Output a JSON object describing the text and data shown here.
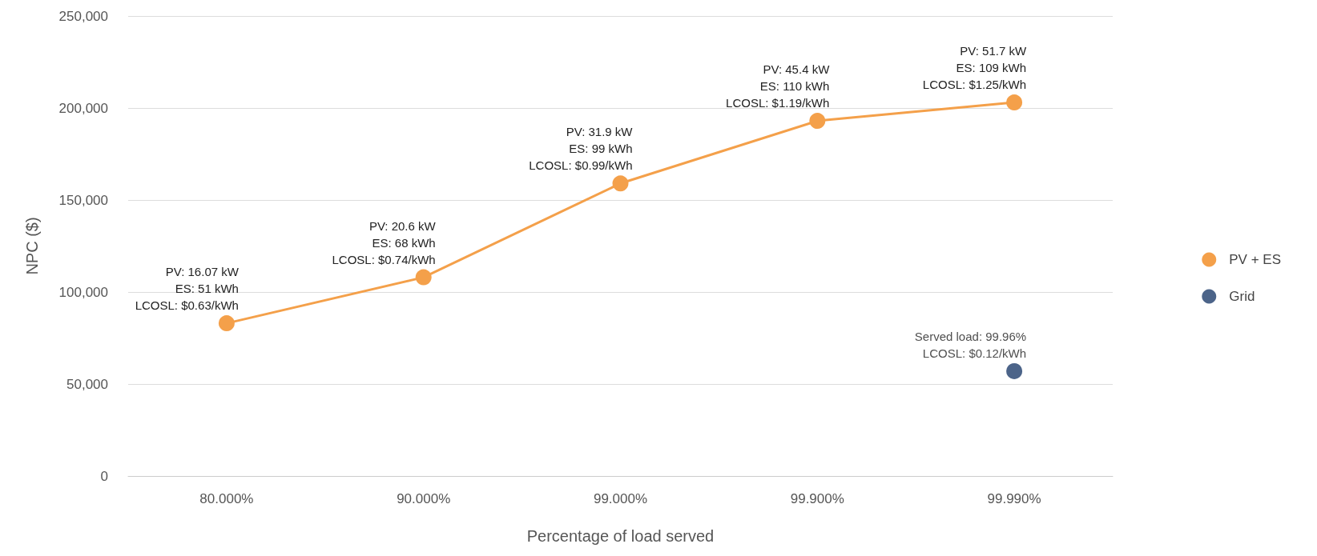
{
  "chart_data": {
    "type": "line",
    "xlabel": "Percentage of load served",
    "ylabel": "NPC ($)",
    "categories": [
      "80.000%",
      "90.000%",
      "99.000%",
      "99.900%",
      "99.990%"
    ],
    "series": [
      {
        "name": "PV + ES",
        "color": "#f4a04a",
        "values": [
          83000,
          108000,
          159000,
          193000,
          203000
        ]
      },
      {
        "name": "Grid",
        "type": "scatter",
        "color": "#1f3d6b",
        "values": [
          null,
          null,
          null,
          null,
          57000
        ]
      }
    ],
    "ylim": [
      0,
      250000
    ],
    "yticks": [
      0,
      {
        "value": 50000,
        "label": "50,000"
      },
      {
        "value": 100000,
        "label": "100,000"
      },
      {
        "value": 150000,
        "label": "150,000"
      },
      {
        "value": 200000,
        "label": "200,000"
      },
      {
        "value": 250000,
        "label": "250,000"
      }
    ],
    "grid": "y",
    "legend": "right",
    "marker": "circle",
    "line_style": "solid",
    "annotations": [
      {
        "text": "PV: 16.07 kW\nES: 51 kWh\nLCOSL: $0.63/kWh",
        "x": "80.000%",
        "y": 83000
      },
      {
        "text": "PV: 20.6 kW\nES: 68 kWh\nLCOSL: $0.74/kWh",
        "x": "90.000%",
        "y": 108000
      },
      {
        "text": "PV: 31.9 kW\nES: 99 kWh\nLCOSL: $0.99/kWh",
        "x": "99.000%",
        "y": 159000
      },
      {
        "text": "PV: 45.4 kW\nES: 110 kWh\nLCOSL: $1.19/kWh",
        "x": "99.900%",
        "y": 193000
      },
      {
        "text": "PV: 51.7 kW\nES: 109 kWh\nLCOSL: $1.25/kWh",
        "x": "99.990%",
        "y": 203000
      },
      {
        "text": "Served load: 99.96%\nLCOSL: $0.12/kWh",
        "x": "99.990%",
        "y": 57000
      }
    ]
  }
}
